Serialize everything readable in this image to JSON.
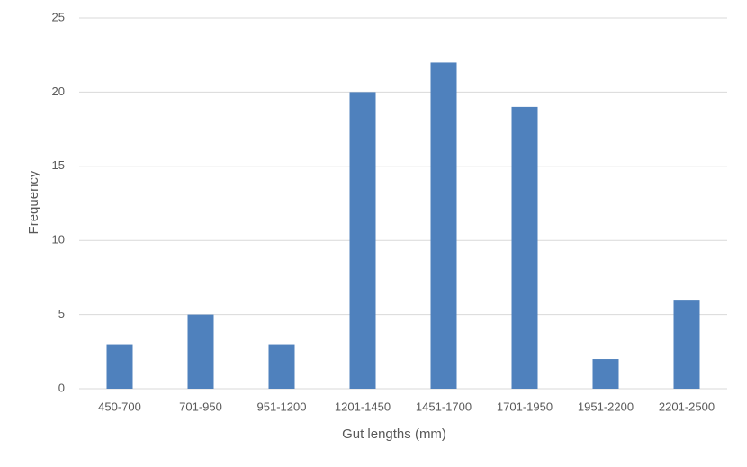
{
  "chart_data": {
    "type": "bar",
    "x_label": "Gut lengths (mm)",
    "y_label": "Frequency",
    "categories": [
      "450-700",
      "701-950",
      "951-1200",
      "1201-1450",
      "1451-1700",
      "1701-1950",
      "1951-2200",
      "2201-2500"
    ],
    "values": [
      3,
      5,
      3,
      20,
      22,
      19,
      2,
      6
    ],
    "color": "#4f81bd",
    "ylim": [
      0,
      25
    ],
    "yticks": [
      0,
      5,
      10,
      15,
      20,
      25
    ],
    "grid": true
  }
}
